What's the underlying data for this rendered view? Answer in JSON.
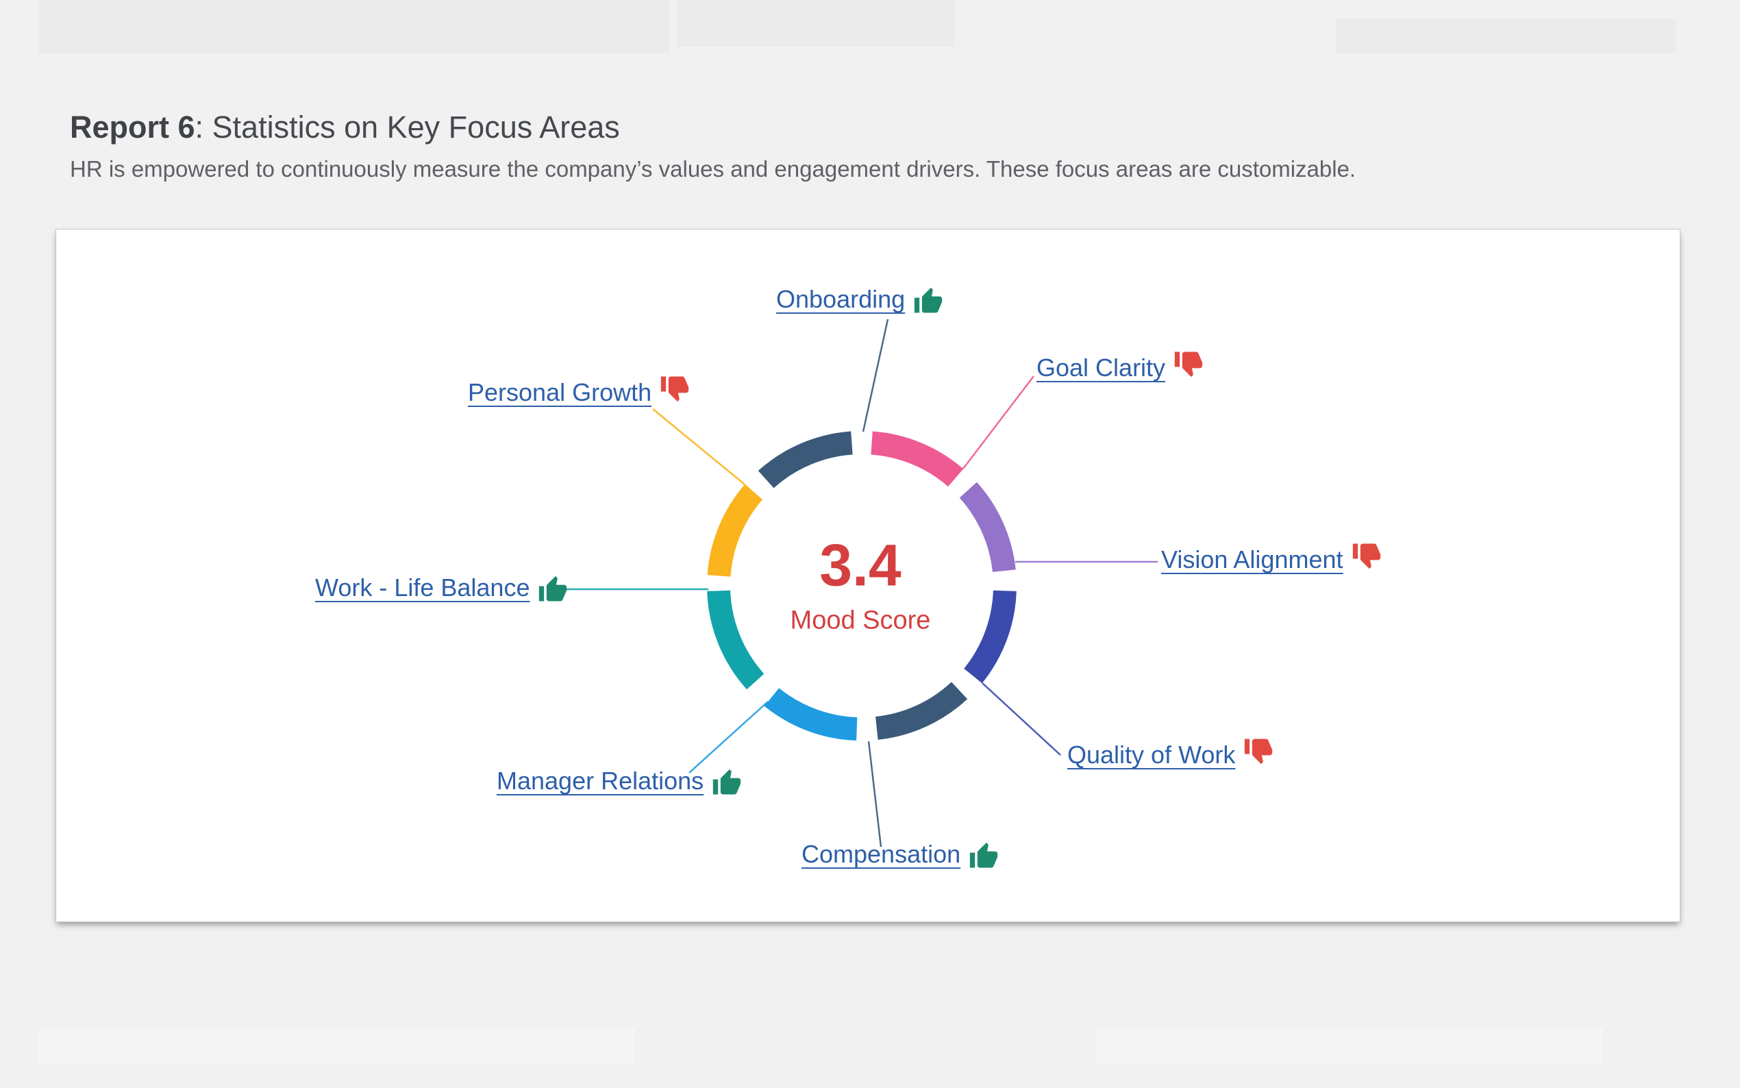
{
  "page": {
    "background": "#f1f1f2",
    "header": {
      "title_prefix": "Report 6",
      "title_rest": ": Statistics on Key Focus Areas",
      "subtitle": "HR is empowered to continuously measure the company’s values and engagement drivers. These focus areas are customizable."
    }
  },
  "chart_data": {
    "type": "donut-status",
    "description": "Ring of 8 equal focus-area segments around a central mood score; each segment links to a labeled focus area with a thumbs-up or thumbs-down status.",
    "center_value": "3.4",
    "center_label": "Mood Score",
    "center_color": "#d43f3f",
    "label_color": "#2d5fa9",
    "status_colors": {
      "thumbs_up": "#1e8a6d",
      "thumbs_down": "#e24a41"
    },
    "legend_position": "radial-callouts",
    "segments": [
      {
        "label": "Onboarding",
        "sentiment": "thumbs-up",
        "color": "#3b5a7a"
      },
      {
        "label": "Goal Clarity",
        "sentiment": "thumbs-down",
        "color": "#ee5a92"
      },
      {
        "label": "Vision Alignment",
        "sentiment": "thumbs-down",
        "color": "#9473cb"
      },
      {
        "label": "Quality of Work",
        "sentiment": "thumbs-down",
        "color": "#3b4aad"
      },
      {
        "label": "Compensation",
        "sentiment": "thumbs-up",
        "color": "#3b5a7a"
      },
      {
        "label": "Manager Relations",
        "sentiment": "thumbs-up",
        "color": "#1f9be2"
      },
      {
        "label": "Work - Life Balance",
        "sentiment": "thumbs-up",
        "color": "#11a4aa"
      },
      {
        "label": "Personal Growth",
        "sentiment": "thumbs-down",
        "color": "#fbb41e"
      }
    ]
  }
}
